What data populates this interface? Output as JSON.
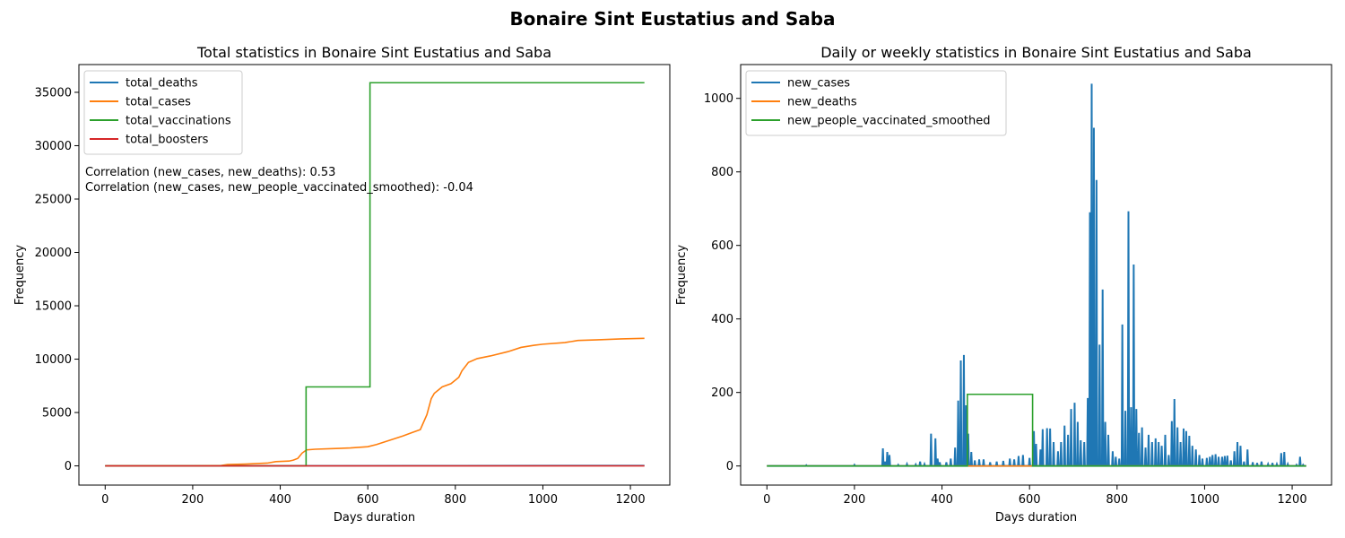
{
  "suptitle": "Bonaire Sint Eustatius and Saba",
  "colors": {
    "blue": "#1f77b4",
    "orange": "#ff7f0e",
    "green": "#2ca02c",
    "red": "#d62728"
  },
  "chart_data": [
    {
      "type": "line",
      "title": "Total statistics in Bonaire Sint Eustatius and Saba",
      "xlabel": "Days duration",
      "ylabel": "Frequency",
      "xlim": [
        -60,
        1290
      ],
      "ylim": [
        -1800,
        37600
      ],
      "xticks": [
        0,
        200,
        400,
        600,
        800,
        1000,
        1200
      ],
      "yticks": [
        0,
        5000,
        10000,
        15000,
        20000,
        25000,
        30000,
        35000
      ],
      "legend": "top-left",
      "annotations": [
        "Correlation (new_cases, new_deaths): 0.53",
        "Correlation (new_cases, new_people_vaccinated_smoothed): -0.04"
      ],
      "series": [
        {
          "name": "total_deaths",
          "color": "#1f77b4",
          "step": false,
          "points": [
            [
              0,
              0
            ],
            [
              400,
              10
            ],
            [
              700,
              20
            ],
            [
              1232,
              36
            ]
          ]
        },
        {
          "name": "total_cases",
          "color": "#ff7f0e",
          "step": false,
          "points": [
            [
              0,
              0
            ],
            [
              200,
              5
            ],
            [
              265,
              30
            ],
            [
              280,
              130
            ],
            [
              320,
              170
            ],
            [
              370,
              260
            ],
            [
              390,
              400
            ],
            [
              420,
              450
            ],
            [
              430,
              540
            ],
            [
              440,
              700
            ],
            [
              450,
              1200
            ],
            [
              460,
              1500
            ],
            [
              480,
              1560
            ],
            [
              520,
              1620
            ],
            [
              560,
              1680
            ],
            [
              600,
              1800
            ],
            [
              620,
              2000
            ],
            [
              650,
              2400
            ],
            [
              680,
              2800
            ],
            [
              700,
              3100
            ],
            [
              720,
              3400
            ],
            [
              735,
              4800
            ],
            [
              745,
              6300
            ],
            [
              752,
              6800
            ],
            [
              770,
              7400
            ],
            [
              790,
              7700
            ],
            [
              808,
              8300
            ],
            [
              815,
              8900
            ],
            [
              830,
              9700
            ],
            [
              850,
              10050
            ],
            [
              880,
              10300
            ],
            [
              920,
              10700
            ],
            [
              950,
              11100
            ],
            [
              980,
              11300
            ],
            [
              1000,
              11400
            ],
            [
              1050,
              11550
            ],
            [
              1080,
              11750
            ],
            [
              1120,
              11800
            ],
            [
              1180,
              11900
            ],
            [
              1232,
              11950
            ]
          ]
        },
        {
          "name": "total_vaccinations",
          "color": "#2ca02c",
          "step": true,
          "points": [
            [
              0,
              0
            ],
            [
              459,
              0
            ],
            [
              459,
              7400
            ],
            [
              605,
              7400
            ],
            [
              605,
              35900
            ],
            [
              1232,
              35900
            ]
          ]
        },
        {
          "name": "total_boosters",
          "color": "#d62728",
          "step": false,
          "points": [
            [
              0,
              0
            ],
            [
              1232,
              0
            ]
          ]
        }
      ]
    },
    {
      "type": "line",
      "title": "Daily or weekly statistics in Bonaire Sint Eustatius and Saba",
      "xlabel": "Days duration",
      "ylabel": "Frequency",
      "xlim": [
        -60,
        1290
      ],
      "ylim": [
        -52,
        1092
      ],
      "xticks": [
        0,
        200,
        400,
        600,
        800,
        1000,
        1200
      ],
      "yticks": [
        0,
        200,
        400,
        600,
        800,
        1000
      ],
      "legend": "top-left",
      "series": [
        {
          "name": "new_cases",
          "color": "#1f77b4",
          "kind": "spikes",
          "spikes": [
            [
              90,
              2
            ],
            [
              200,
              3
            ],
            [
              265,
              48
            ],
            [
              270,
              12
            ],
            [
              275,
              38
            ],
            [
              280,
              30
            ],
            [
              300,
              3
            ],
            [
              320,
              5
            ],
            [
              340,
              4
            ],
            [
              350,
              12
            ],
            [
              360,
              5
            ],
            [
              375,
              88
            ],
            [
              385,
              75
            ],
            [
              390,
              20
            ],
            [
              395,
              10
            ],
            [
              410,
              10
            ],
            [
              420,
              20
            ],
            [
              430,
              50
            ],
            [
              437,
              178
            ],
            [
              443,
              287
            ],
            [
              450,
              302
            ],
            [
              455,
              165
            ],
            [
              460,
              88
            ],
            [
              467,
              38
            ],
            [
              475,
              15
            ],
            [
              485,
              18
            ],
            [
              495,
              18
            ],
            [
              510,
              10
            ],
            [
              525,
              12
            ],
            [
              540,
              14
            ],
            [
              555,
              20
            ],
            [
              565,
              18
            ],
            [
              575,
              27
            ],
            [
              585,
              30
            ],
            [
              600,
              22
            ],
            [
              610,
              95
            ],
            [
              615,
              60
            ],
            [
              625,
              45
            ],
            [
              630,
              100
            ],
            [
              640,
              103
            ],
            [
              647,
              102
            ],
            [
              655,
              65
            ],
            [
              665,
              40
            ],
            [
              672,
              65
            ],
            [
              680,
              110
            ],
            [
              688,
              85
            ],
            [
              695,
              155
            ],
            [
              703,
              172
            ],
            [
              710,
              120
            ],
            [
              717,
              70
            ],
            [
              725,
              65
            ],
            [
              733,
              185
            ],
            [
              738,
              690
            ],
            [
              742,
              1040
            ],
            [
              747,
              920
            ],
            [
              753,
              778
            ],
            [
              760,
              330
            ],
            [
              767,
              480
            ],
            [
              773,
              120
            ],
            [
              780,
              85
            ],
            [
              790,
              40
            ],
            [
              797,
              25
            ],
            [
              805,
              20
            ],
            [
              812,
              385
            ],
            [
              819,
              150
            ],
            [
              826,
              693
            ],
            [
              832,
              160
            ],
            [
              838,
              548
            ],
            [
              844,
              155
            ],
            [
              850,
              90
            ],
            [
              857,
              105
            ],
            [
              865,
              50
            ],
            [
              872,
              85
            ],
            [
              880,
              65
            ],
            [
              888,
              75
            ],
            [
              895,
              65
            ],
            [
              902,
              55
            ],
            [
              910,
              85
            ],
            [
              918,
              30
            ],
            [
              925,
              122
            ],
            [
              931,
              182
            ],
            [
              938,
              105
            ],
            [
              945,
              65
            ],
            [
              952,
              102
            ],
            [
              958,
              95
            ],
            [
              965,
              82
            ],
            [
              972,
              55
            ],
            [
              980,
              45
            ],
            [
              988,
              30
            ],
            [
              995,
              20
            ],
            [
              1005,
              22
            ],
            [
              1012,
              25
            ],
            [
              1018,
              30
            ],
            [
              1025,
              32
            ],
            [
              1032,
              25
            ],
            [
              1040,
              25
            ],
            [
              1046,
              27
            ],
            [
              1052,
              28
            ],
            [
              1060,
              15
            ],
            [
              1068,
              40
            ],
            [
              1075,
              65
            ],
            [
              1082,
              55
            ],
            [
              1090,
              12
            ],
            [
              1098,
              45
            ],
            [
              1110,
              10
            ],
            [
              1120,
              8
            ],
            [
              1130,
              12
            ],
            [
              1145,
              5
            ],
            [
              1155,
              8
            ],
            [
              1165,
              5
            ],
            [
              1175,
              35
            ],
            [
              1182,
              38
            ],
            [
              1190,
              5
            ],
            [
              1210,
              3
            ],
            [
              1218,
              25
            ],
            [
              1225,
              3
            ]
          ]
        },
        {
          "name": "new_deaths",
          "color": "#ff7f0e",
          "kind": "line",
          "points": [
            [
              0,
              0
            ],
            [
              1232,
              0
            ]
          ]
        },
        {
          "name": "new_people_vaccinated_smoothed",
          "color": "#2ca02c",
          "kind": "step",
          "points": [
            [
              0,
              0
            ],
            [
              458,
              0
            ],
            [
              458,
              195
            ],
            [
              607,
              195
            ],
            [
              607,
              0
            ],
            [
              1232,
              0
            ]
          ]
        }
      ]
    }
  ]
}
